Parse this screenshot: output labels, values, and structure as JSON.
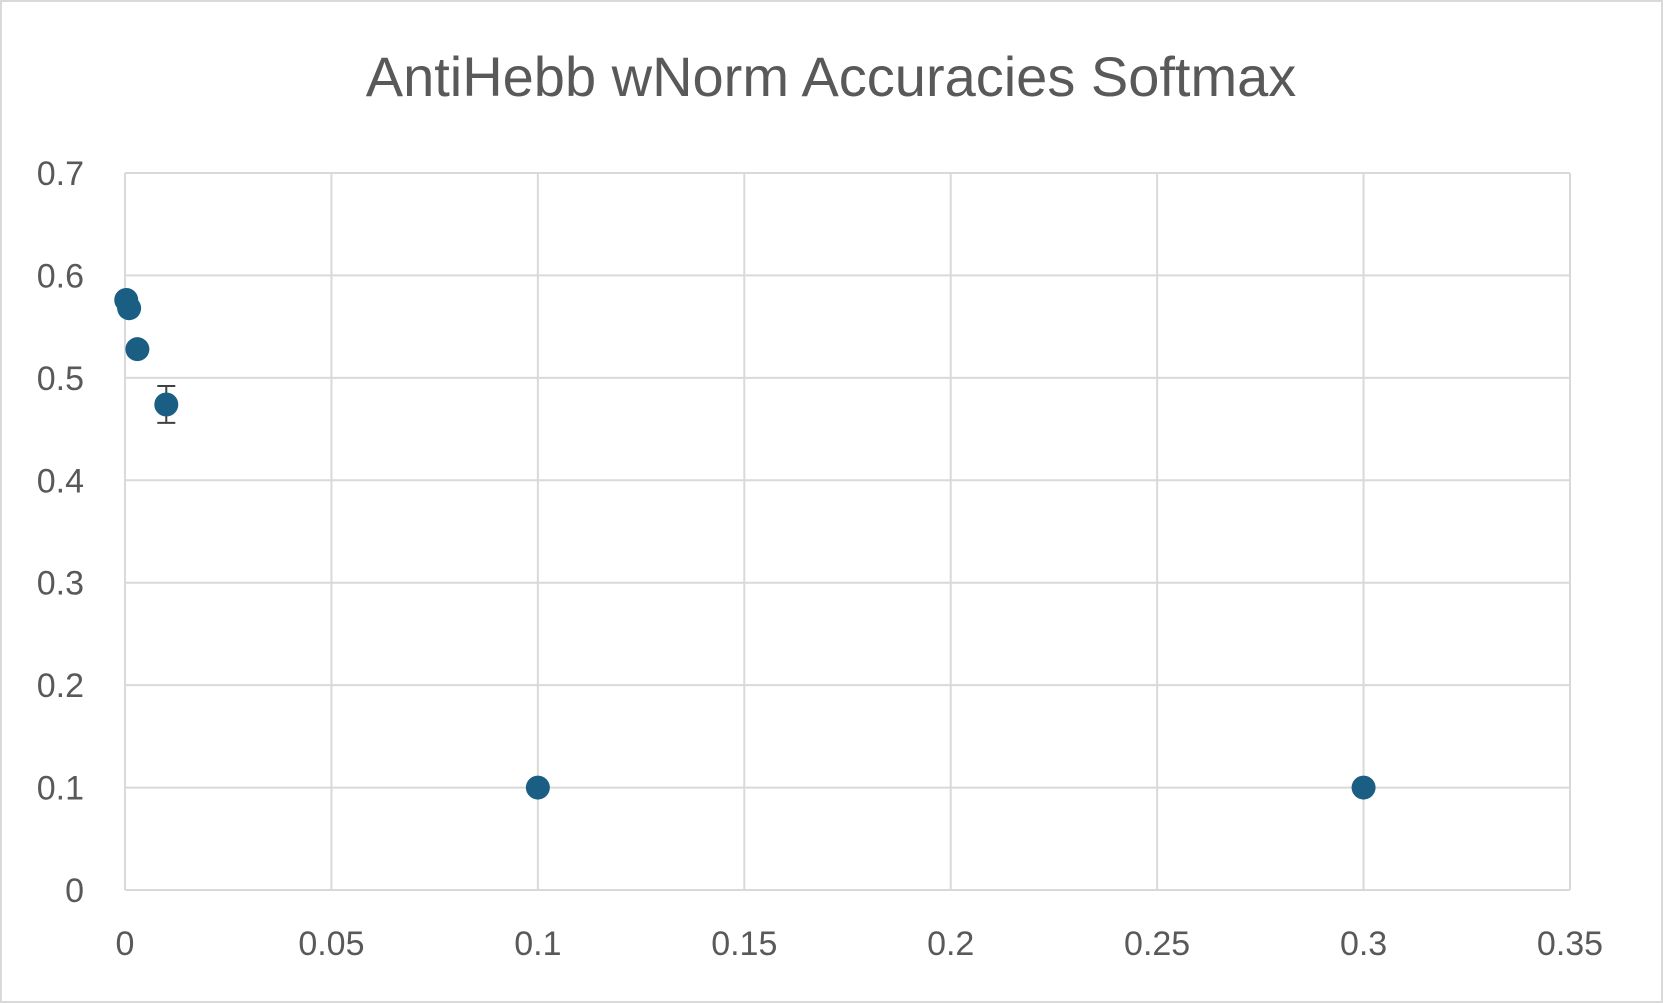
{
  "chart_data": {
    "type": "scatter",
    "title": "AntiHebb wNorm Accuracies Softmax",
    "xlabel": "",
    "ylabel": "",
    "xlim": [
      0,
      0.35
    ],
    "ylim": [
      0,
      0.7
    ],
    "x_ticks": [
      "0",
      "0.05",
      "0.1",
      "0.15",
      "0.2",
      "0.25",
      "0.3",
      "0.35"
    ],
    "y_ticks": [
      "0",
      "0.1",
      "0.2",
      "0.3",
      "0.4",
      "0.5",
      "0.6",
      "0.7"
    ],
    "x_tick_values": [
      0,
      0.05,
      0.1,
      0.15,
      0.2,
      0.25,
      0.3,
      0.35
    ],
    "y_tick_values": [
      0,
      0.1,
      0.2,
      0.3,
      0.4,
      0.5,
      0.6,
      0.7
    ],
    "grid": true,
    "legend": "none",
    "marker_color": "#1b5e84",
    "series": [
      {
        "points": [
          {
            "x": 0.0003,
            "y": 0.576,
            "err": 0.003
          },
          {
            "x": 0.001,
            "y": 0.568,
            "err": 0.003
          },
          {
            "x": 0.003,
            "y": 0.528,
            "err": 0.003
          },
          {
            "x": 0.01,
            "y": 0.474,
            "err": 0.018
          },
          {
            "x": 0.1,
            "y": 0.1,
            "err": 0
          },
          {
            "x": 0.3,
            "y": 0.1,
            "err": 0
          }
        ]
      }
    ]
  }
}
